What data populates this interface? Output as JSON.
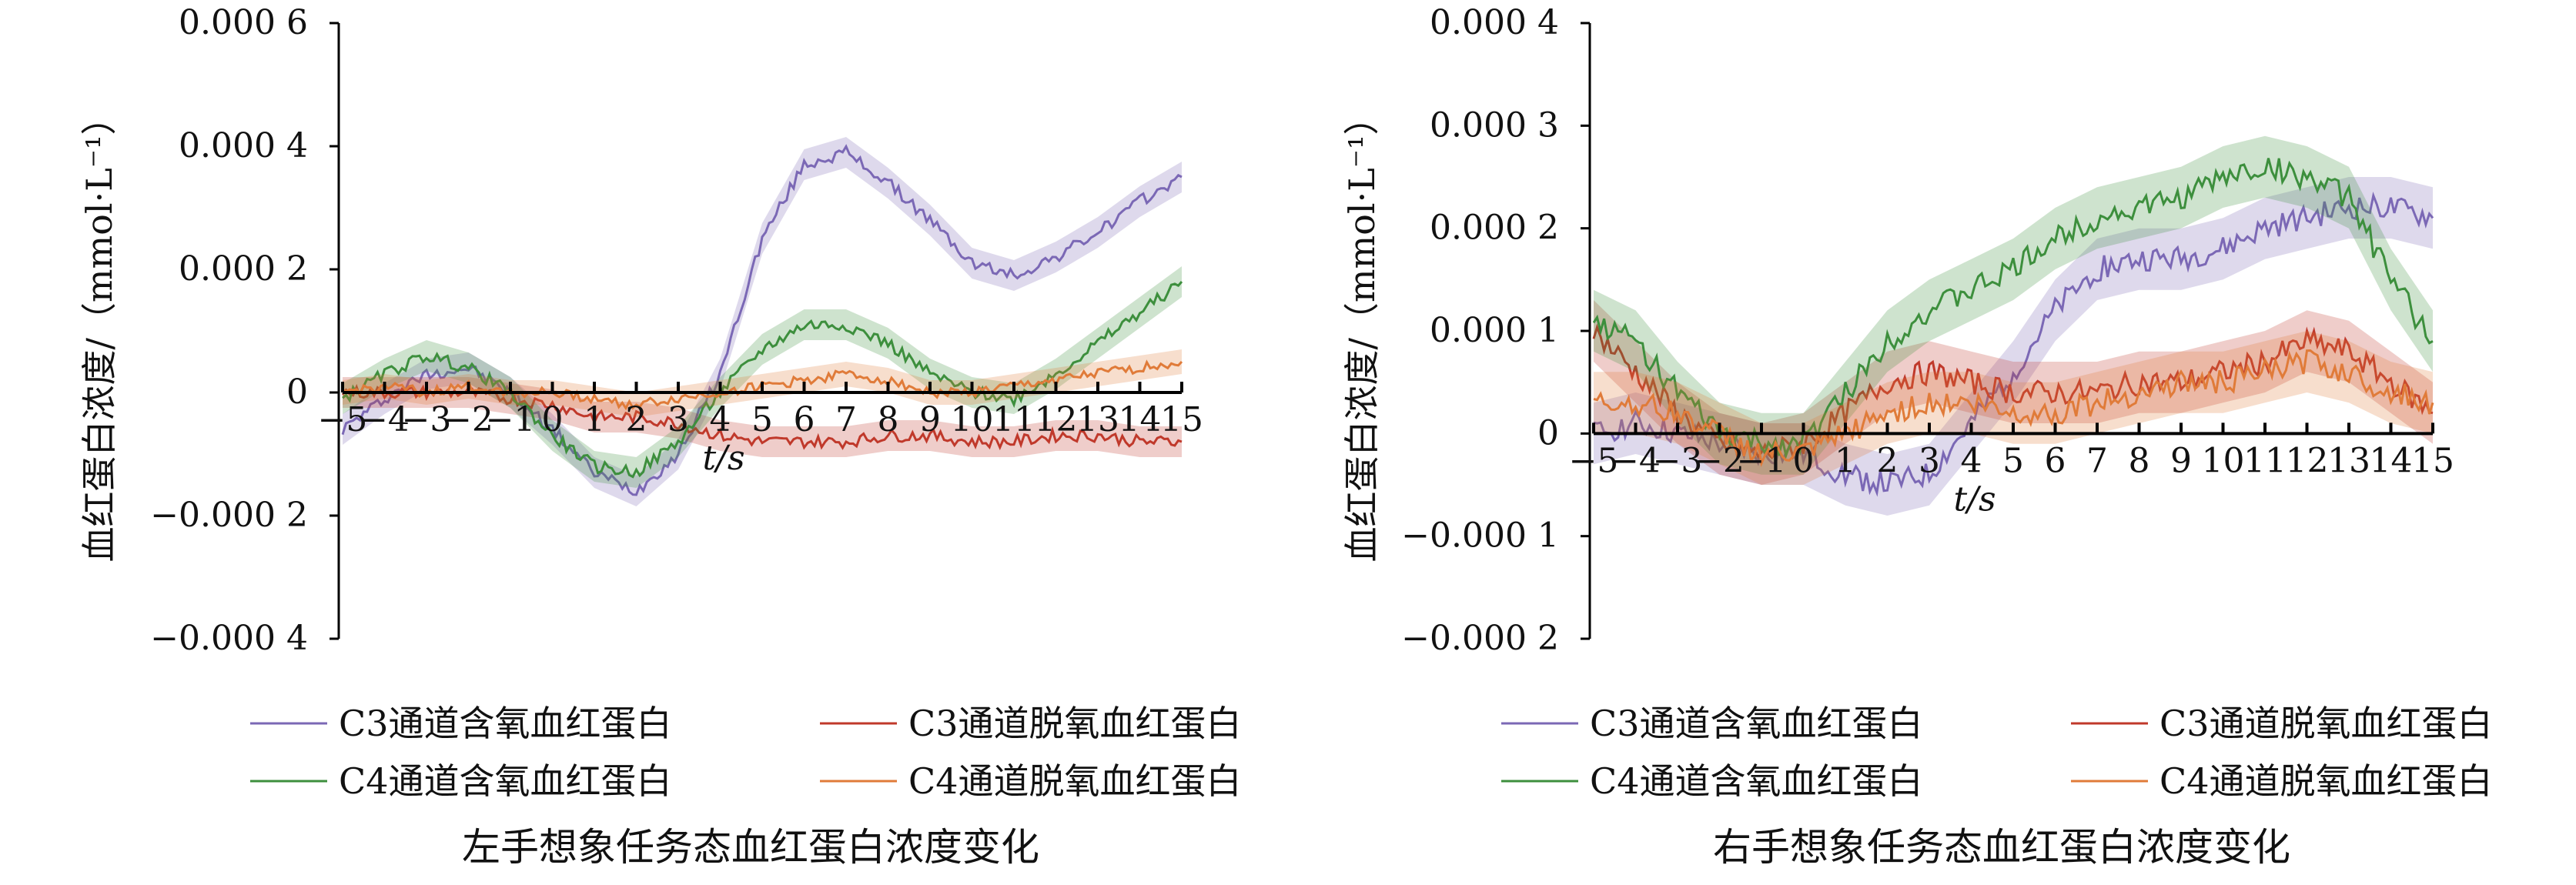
{
  "chart_data": [
    {
      "type": "line",
      "title": "左手想象任务态血红蛋白浓度变化",
      "xlabel": "t/s",
      "ylabel": "血红蛋白浓度/（mmol·L⁻¹）",
      "ylim": [
        -0.0004,
        0.0006
      ],
      "yticks": [
        -0.0004,
        -0.0002,
        0,
        0.0002,
        0.0004,
        0.0006
      ],
      "ytick_labels": [
        "−0.000 4",
        "−0.000 2",
        "0",
        "0.000 2",
        "0.000 4",
        "0.000 6"
      ],
      "xlim": [
        -5,
        15
      ],
      "x_categories": [
        "−5",
        "−4",
        "−3",
        "−2",
        "−1",
        "0",
        "1",
        "2",
        "3",
        "4",
        "5",
        "6",
        "7",
        "8",
        "9",
        "10",
        "11",
        "12",
        "13",
        "14",
        "15"
      ],
      "legend_position": "bottom",
      "x": [
        -5,
        -4,
        -3,
        -2,
        -1,
        0,
        1,
        2,
        3,
        4,
        5,
        6,
        7,
        8,
        9,
        10,
        11,
        12,
        13,
        14,
        15
      ],
      "series": [
        {
          "name": "C3通道含氧血红蛋白",
          "color": "#7b68b5",
          "band": 2.5e-05,
          "values": [
            -6e-05,
            -1e-05,
            3e-05,
            4e-05,
            0.0,
            -6e-05,
            -0.00013,
            -0.00016,
            -0.0001,
            3e-05,
            0.00025,
            0.00037,
            0.00039,
            0.00034,
            0.00028,
            0.00021,
            0.00019,
            0.00022,
            0.00026,
            0.00031,
            0.00035
          ]
        },
        {
          "name": "C3通道脱氧血红蛋白",
          "color": "#c0392b",
          "band": 2.5e-05,
          "values": [
            0.0,
            0.0,
            0.0,
            0.0,
            -1e-05,
            -2e-05,
            -4e-05,
            -4e-05,
            -5e-05,
            -7e-05,
            -8e-05,
            -8e-05,
            -8e-05,
            -7e-05,
            -7e-05,
            -8e-05,
            -8e-05,
            -7e-05,
            -7e-05,
            -8e-05,
            -8e-05
          ]
        },
        {
          "name": "C4通道含氧血红蛋白",
          "color": "#3d8f3d",
          "band": 2.5e-05,
          "values": [
            -1e-05,
            3e-05,
            6e-05,
            4e-05,
            0.0,
            -7e-05,
            -0.00012,
            -0.00013,
            -8e-05,
            0.0,
            7e-05,
            0.00011,
            0.00011,
            8e-05,
            3e-05,
            0.0,
            -1e-05,
            3e-05,
            8e-05,
            0.00013,
            0.00018
          ]
        },
        {
          "name": "C4通道脱氧血红蛋白",
          "color": "#e07b39",
          "band": 2e-05,
          "values": [
            0.0,
            1e-05,
            0.0,
            1e-05,
            0.0,
            0.0,
            -1e-05,
            -2e-05,
            -1e-05,
            0.0,
            1e-05,
            2e-05,
            3e-05,
            2e-05,
            0.0,
            0.0,
            1e-05,
            2e-05,
            3e-05,
            4e-05,
            5e-05
          ]
        }
      ]
    },
    {
      "type": "line",
      "title": "右手想象任务态血红蛋白浓度变化",
      "xlabel": "t/s",
      "ylabel": "血红蛋白浓度/（mmol·L⁻¹）",
      "ylim": [
        -0.0002,
        0.0004
      ],
      "yticks": [
        -0.0002,
        -0.0001,
        0,
        0.0001,
        0.0002,
        0.0003,
        0.0004
      ],
      "ytick_labels": [
        "−0.000 2",
        "−0.000 1",
        "0",
        "0.000 1",
        "0.000 2",
        "0.000 3",
        "0.000 4"
      ],
      "xlim": [
        -5,
        15
      ],
      "x_categories": [
        "−5",
        "−4",
        "−3",
        "−2",
        "−1",
        "0",
        "1",
        "2",
        "3",
        "4",
        "5",
        "6",
        "7",
        "8",
        "9",
        "10",
        "11",
        "12",
        "13",
        "14",
        "15"
      ],
      "legend_position": "bottom",
      "x": [
        -5,
        -4,
        -3,
        -2,
        -1,
        0,
        1,
        2,
        3,
        4,
        5,
        6,
        7,
        8,
        9,
        10,
        11,
        12,
        13,
        14,
        15
      ],
      "series": [
        {
          "name": "C3通道含氧血红蛋白",
          "color": "#7b68b5",
          "band": 3e-05,
          "values": [
            0.0,
            1e-05,
            0.0,
            -1e-05,
            -2e-05,
            -2e-05,
            -4e-05,
            -5e-05,
            -4e-05,
            1e-05,
            6e-05,
            0.00012,
            0.00016,
            0.00017,
            0.00017,
            0.00018,
            0.0002,
            0.00021,
            0.00022,
            0.00022,
            0.00021
          ]
        },
        {
          "name": "C3通道脱氧血红蛋白",
          "color": "#c0392b",
          "band": 3e-05,
          "values": [
            0.0001,
            6e-05,
            2e-05,
            -1e-05,
            -2e-05,
            -1e-05,
            2e-05,
            5e-05,
            6e-05,
            5e-05,
            4e-05,
            4e-05,
            4e-05,
            5e-05,
            5e-05,
            6e-05,
            7e-05,
            9e-05,
            8e-05,
            5e-05,
            2e-05
          ]
        },
        {
          "name": "C4通道含氧血红蛋白",
          "color": "#3d8f3d",
          "band": 3e-05,
          "values": [
            0.00011,
            9e-05,
            4e-05,
            0.0,
            -1e-05,
            -1e-05,
            4e-05,
            9e-05,
            0.00012,
            0.00014,
            0.00016,
            0.00019,
            0.00021,
            0.00022,
            0.00023,
            0.00025,
            0.00026,
            0.00025,
            0.00023,
            0.00015,
            9e-05
          ]
        },
        {
          "name": "C4通道脱氧血红蛋白",
          "color": "#e07b39",
          "band": 3e-05,
          "values": [
            3e-05,
            3e-05,
            2e-05,
            0.0,
            -2e-05,
            -2e-05,
            0.0,
            2e-05,
            3e-05,
            3e-05,
            2e-05,
            2e-05,
            3e-05,
            4e-05,
            5e-05,
            5e-05,
            6e-05,
            7e-05,
            6e-05,
            4e-05,
            3e-05
          ]
        }
      ]
    }
  ]
}
